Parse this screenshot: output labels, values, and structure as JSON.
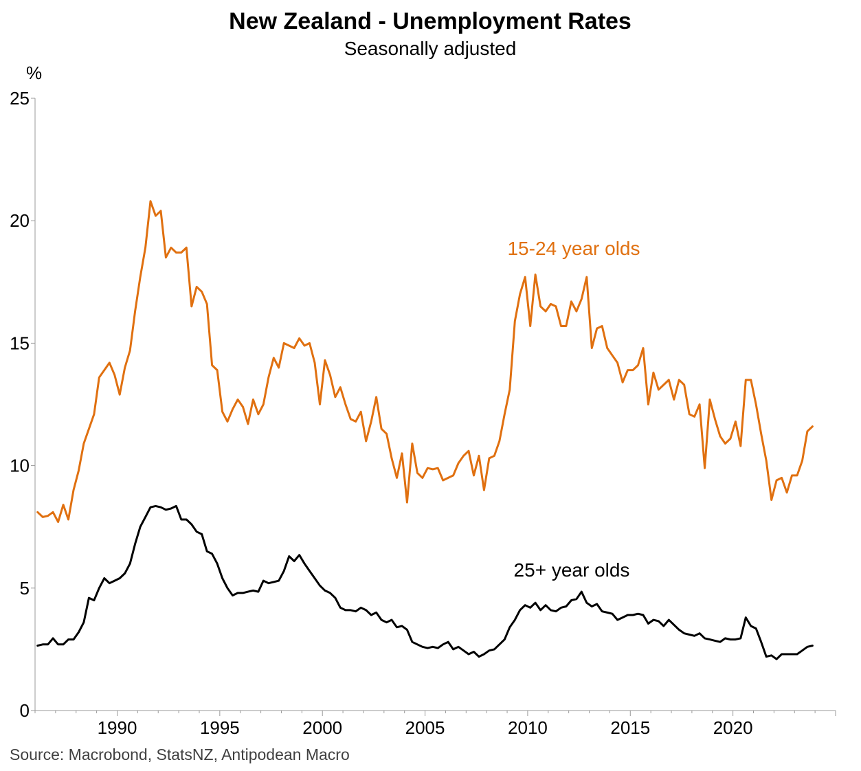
{
  "chart_data": {
    "type": "line",
    "title": "New Zealand - Unemployment Rates",
    "subtitle": "Seasonally adjusted",
    "ylabel": "%",
    "xlabel": "",
    "ylim": [
      0,
      25
    ],
    "xlim": [
      1986.0,
      2025.0
    ],
    "yticks": [
      "0",
      "5",
      "10",
      "15",
      "20",
      "25"
    ],
    "xticks": [
      "1990",
      "1995",
      "2000",
      "2005",
      "2010",
      "2015",
      "2020"
    ],
    "source": "Source: Macrobond, StatsNZ, Antipodean Macro",
    "x_start": 1986.125,
    "x_step": 0.25,
    "series": [
      {
        "name": "15-24 year olds",
        "label": "15-24 year olds",
        "color": "#e07010",
        "values": [
          8.1,
          7.9,
          7.95,
          8.1,
          7.7,
          8.4,
          7.8,
          9.0,
          9.8,
          10.9,
          11.5,
          12.1,
          13.6,
          13.9,
          14.2,
          13.7,
          12.9,
          14.0,
          14.7,
          16.3,
          17.7,
          18.9,
          20.8,
          20.2,
          20.4,
          18.5,
          18.9,
          18.7,
          18.7,
          18.9,
          16.5,
          17.3,
          17.1,
          16.6,
          14.1,
          13.9,
          12.2,
          11.8,
          12.3,
          12.7,
          12.4,
          11.7,
          12.7,
          12.1,
          12.5,
          13.6,
          14.4,
          14.0,
          15.0,
          14.9,
          14.8,
          15.2,
          14.9,
          15.0,
          14.2,
          12.5,
          14.3,
          13.7,
          12.8,
          13.2,
          12.5,
          11.9,
          11.8,
          12.2,
          11.0,
          11.8,
          12.8,
          11.5,
          11.3,
          10.3,
          9.5,
          10.5,
          8.5,
          10.9,
          9.7,
          9.5,
          9.9,
          9.85,
          9.9,
          9.4,
          9.5,
          9.6,
          10.1,
          10.4,
          10.6,
          9.6,
          10.4,
          9.0,
          10.3,
          10.4,
          11.0,
          12.1,
          13.1,
          15.9,
          17.0,
          17.7,
          15.7,
          17.8,
          16.5,
          16.3,
          16.6,
          16.5,
          15.7,
          15.7,
          16.7,
          16.3,
          16.8,
          17.7,
          14.8,
          15.6,
          15.7,
          14.8,
          14.5,
          14.2,
          13.4,
          13.9,
          13.9,
          14.1,
          14.8,
          12.5,
          13.8,
          13.1,
          13.3,
          13.5,
          12.7,
          13.5,
          13.3,
          12.1,
          12.0,
          12.5,
          9.9,
          12.7,
          11.9,
          11.2,
          10.9,
          11.1,
          11.8,
          10.8,
          13.5,
          13.5,
          12.5,
          11.3,
          10.2,
          8.6,
          9.4,
          9.5,
          8.9,
          9.6,
          9.6,
          10.2,
          11.4,
          11.6
        ]
      },
      {
        "name": "25+ year olds",
        "label": "25+ year olds",
        "color": "#000000",
        "values": [
          2.65,
          2.7,
          2.7,
          2.95,
          2.7,
          2.7,
          2.9,
          2.9,
          3.2,
          3.6,
          4.6,
          4.5,
          5.0,
          5.4,
          5.2,
          5.3,
          5.4,
          5.6,
          6.0,
          6.8,
          7.5,
          7.9,
          8.3,
          8.35,
          8.3,
          8.2,
          8.25,
          8.35,
          7.8,
          7.8,
          7.6,
          7.3,
          7.2,
          6.5,
          6.4,
          6.0,
          5.4,
          5.0,
          4.7,
          4.8,
          4.8,
          4.85,
          4.9,
          4.85,
          5.3,
          5.2,
          5.25,
          5.3,
          5.7,
          6.3,
          6.1,
          6.35,
          6.0,
          5.7,
          5.4,
          5.1,
          4.9,
          4.8,
          4.6,
          4.2,
          4.1,
          4.1,
          4.05,
          4.2,
          4.1,
          3.9,
          4.0,
          3.7,
          3.6,
          3.7,
          3.4,
          3.45,
          3.3,
          2.8,
          2.7,
          2.6,
          2.55,
          2.6,
          2.55,
          2.7,
          2.8,
          2.5,
          2.6,
          2.45,
          2.3,
          2.4,
          2.2,
          2.3,
          2.45,
          2.5,
          2.7,
          2.9,
          3.4,
          3.7,
          4.1,
          4.3,
          4.2,
          4.4,
          4.1,
          4.3,
          4.1,
          4.05,
          4.2,
          4.25,
          4.5,
          4.55,
          4.85,
          4.4,
          4.25,
          4.35,
          4.05,
          4.0,
          3.95,
          3.7,
          3.8,
          3.9,
          3.9,
          3.95,
          3.9,
          3.55,
          3.7,
          3.65,
          3.45,
          3.7,
          3.5,
          3.3,
          3.15,
          3.1,
          3.05,
          3.15,
          2.95,
          2.9,
          2.85,
          2.8,
          2.95,
          2.9,
          2.9,
          2.95,
          3.8,
          3.45,
          3.35,
          2.8,
          2.2,
          2.25,
          2.1,
          2.3,
          2.3,
          2.3,
          2.3,
          2.45,
          2.6,
          2.65
        ]
      }
    ]
  }
}
